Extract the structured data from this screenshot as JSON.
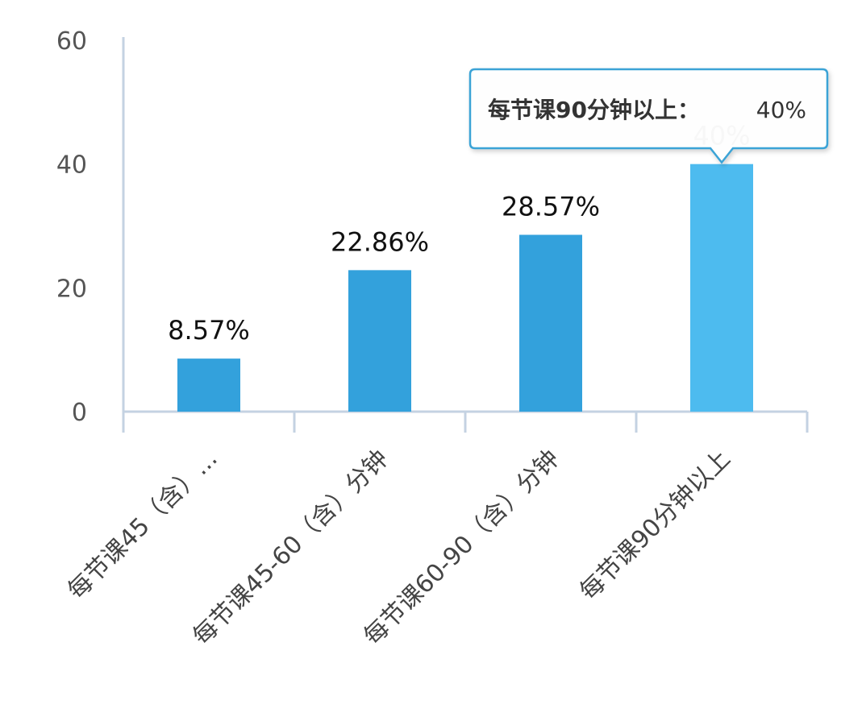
{
  "chart_data": {
    "type": "bar",
    "title": "",
    "xlabel": "",
    "ylabel": "",
    "categories": [
      "每节课45（含）...",
      "每节课45-60（含）分钟",
      "每节课60-90（含）分钟",
      "每节课90分钟以上"
    ],
    "values": [
      8.57,
      22.86,
      28.57,
      40
    ],
    "value_labels": [
      "8.57%",
      "22.86%",
      "28.57%",
      "40%"
    ],
    "y_ticks": [
      "0",
      "20",
      "40",
      "60"
    ],
    "ylim": [
      0,
      60
    ],
    "grid": false,
    "colors": {
      "bar": "#33a1dc",
      "bar_highlight": "#4dbbef",
      "axis": "#c4d2e2",
      "tooltip_border": "#3aa3d6"
    },
    "tooltip": {
      "category": "每节课90分钟以上",
      "separator": "：",
      "value": "40%"
    },
    "highlighted_index": 3
  }
}
